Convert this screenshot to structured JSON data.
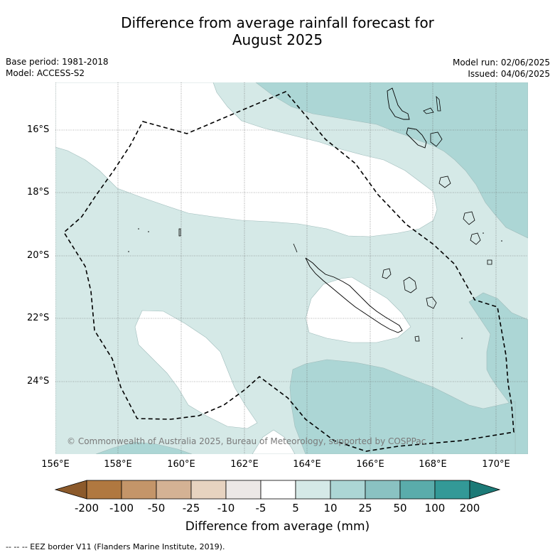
{
  "title_line1": "Difference from average rainfall forecast for",
  "title_line2": "August 2025",
  "meta": {
    "base_period": "Base period: 1981-2018",
    "model": "Model: ACCESS-S2",
    "model_run": "Model run: 02/06/2025",
    "issued": "Issued: 04/06/2025"
  },
  "map": {
    "copyright": "© Commonwealth of Australia 2025, Bureau of Meteorology, supported by COSPPac",
    "lat_labels": [
      "16°S",
      "18°S",
      "20°S",
      "22°S",
      "24°S"
    ],
    "lon_labels": [
      "156°E",
      "158°E",
      "160°E",
      "162°E",
      "164°E",
      "166°E",
      "168°E",
      "170°E"
    ],
    "colors": {
      "band_5_10": "#d5e9e7",
      "band_10_25": "#acd6d5",
      "land_outline": "#000000",
      "eez_border": "#000000"
    }
  },
  "colorbar": {
    "title": "Difference from average (mm)",
    "labels": [
      "-200",
      "-100",
      "-50",
      "-25",
      "-10",
      "-5",
      "5",
      "10",
      "25",
      "50",
      "100",
      "200"
    ],
    "colors": [
      "#8c5a2b",
      "#b07840",
      "#c49569",
      "#d4b294",
      "#e7d3c0",
      "#ece8e6",
      "#ffffff",
      "#d5e9e7",
      "#acd6d5",
      "#8ac2c2",
      "#5aacab",
      "#339997",
      "#1c7a77"
    ]
  },
  "footer": "--  --  -- EEZ border V11 (Flanders Marine Institute, 2019)."
}
